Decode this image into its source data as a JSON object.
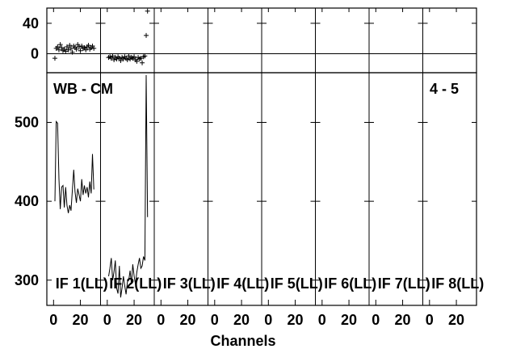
{
  "chart_data": {
    "type": "line",
    "xlabel": "Channels",
    "top_label": "WB - CM",
    "baseline_label": "4 - 5",
    "x_tick_labels": [
      "0",
      "20"
    ],
    "x_ticks": [
      0,
      20
    ],
    "panel_xlim": [
      -5,
      35
    ],
    "top_panel": {
      "ylim": [
        -25,
        60
      ],
      "yticks": [
        0,
        40
      ],
      "ytick_labels": [
        "0",
        "40"
      ],
      "zero_line": 0
    },
    "bottom_panel": {
      "ylim": [
        268,
        563
      ],
      "yticks": [
        300,
        400,
        500
      ],
      "ytick_labels": [
        "300",
        "400",
        "500"
      ]
    },
    "panels": [
      {
        "label": "IF 1(LL)",
        "residuals": [
          -6,
          7,
          9,
          5,
          12,
          8,
          4,
          6,
          3,
          9,
          5,
          11,
          7,
          2,
          10,
          8,
          6,
          12,
          9,
          4,
          10,
          7,
          8,
          5,
          9,
          11,
          6,
          8,
          10,
          7
        ],
        "amplitude": [
          400,
          501,
          499,
          428,
          390,
          418,
          420,
          392,
          418,
          395,
          385,
          395,
          388,
          414,
          440,
          412,
          398,
          416,
          408,
          400,
          428,
          408,
          420,
          410,
          418,
          405,
          425,
          410,
          460,
          415
        ]
      },
      {
        "label": "IF 2(LL)",
        "residuals": [
          -5,
          -4,
          -6,
          -3,
          -8,
          -5,
          -7,
          -4,
          -6,
          -9,
          -5,
          -7,
          -4,
          -6,
          -8,
          -3,
          -7,
          -5,
          -6,
          -4,
          -8,
          -10,
          -5,
          -7,
          -6,
          -12,
          -4,
          -3,
          24,
          56
        ],
        "amplitude": [
          305,
          315,
          328,
          300,
          310,
          325,
          290,
          283,
          318,
          278,
          290,
          305,
          293,
          282,
          298,
          300,
          312,
          295,
          320,
          305,
          295,
          310,
          320,
          328,
          315,
          318,
          330,
          325,
          560,
          380
        ]
      },
      {
        "label": "IF 3(LL)",
        "residuals": [],
        "amplitude": []
      },
      {
        "label": "IF 4(LL)",
        "residuals": [],
        "amplitude": []
      },
      {
        "label": "IF 5(LL)",
        "residuals": [],
        "amplitude": []
      },
      {
        "label": "IF 6(LL)",
        "residuals": [],
        "amplitude": []
      },
      {
        "label": "IF 7(LL)",
        "residuals": [],
        "amplitude": []
      },
      {
        "label": "IF 8(LL)",
        "residuals": [],
        "amplitude": []
      }
    ]
  }
}
